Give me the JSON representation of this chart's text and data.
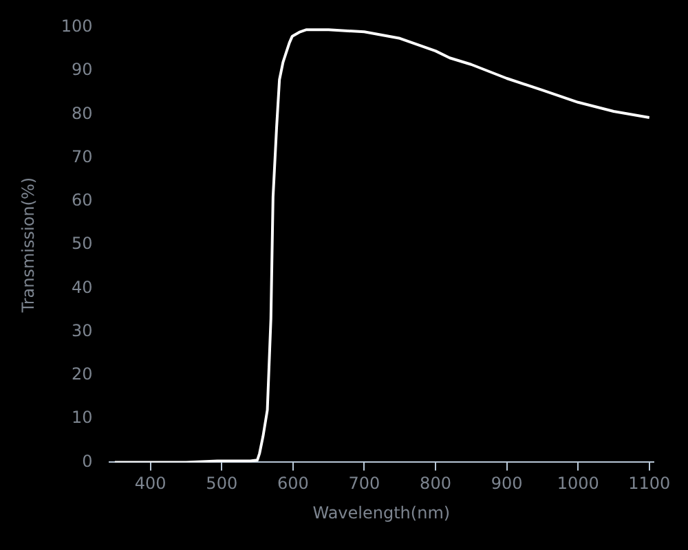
{
  "chart_data": {
    "type": "line",
    "xlabel": "Wavelength(nm)",
    "ylabel": "Transmission(%)",
    "x": [
      350,
      450,
      494,
      540,
      550,
      553,
      558,
      564,
      569,
      572,
      577,
      581,
      586,
      590,
      595,
      599,
      610,
      619,
      650,
      700,
      750,
      800,
      820,
      850,
      900,
      950,
      1000,
      1050,
      1100
    ],
    "series": [
      {
        "color": "#ffffff",
        "values": [
          0,
          0,
          0.3,
          0.3,
          0.5,
          2,
          6,
          12,
          33,
          61,
          77,
          88,
          92,
          94,
          96.5,
          98,
          99,
          99.5,
          99.5,
          99,
          97.5,
          94.6,
          93,
          91.5,
          88.3,
          85.6,
          82.8,
          80.7,
          79.3
        ]
      }
    ],
    "xlim": [
      342,
      1106
    ],
    "ylim": [
      0,
      100
    ],
    "xticks": [
      400,
      500,
      600,
      700,
      800,
      900,
      1000,
      1100
    ],
    "yticks": [
      0,
      10,
      20,
      30,
      40,
      50,
      60,
      70,
      80,
      90,
      100
    ],
    "grid": false,
    "legend": false,
    "marker": "none",
    "line_style": "solid"
  }
}
